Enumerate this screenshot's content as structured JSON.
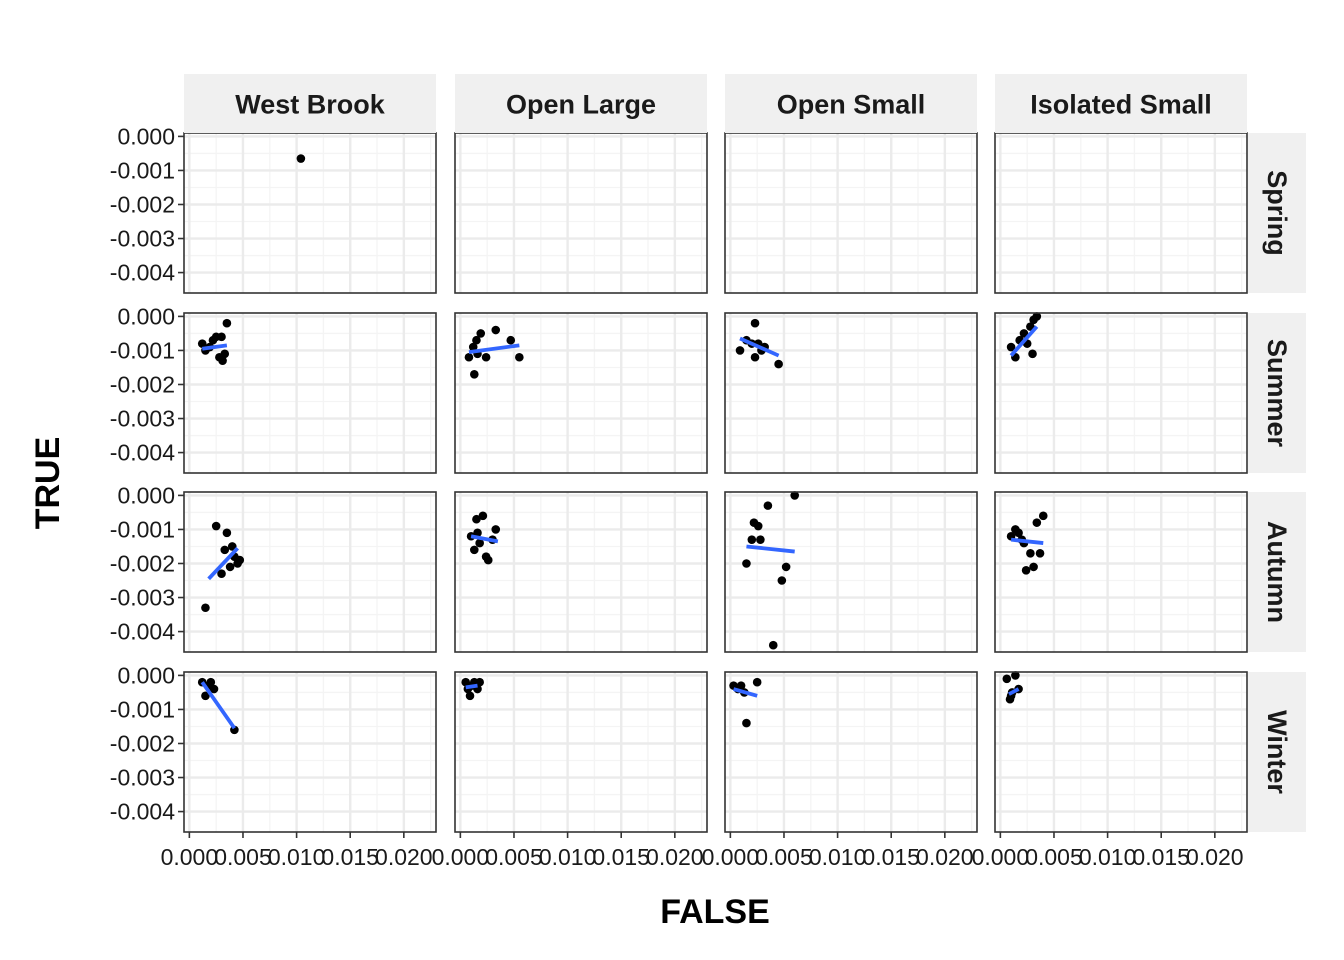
{
  "chart_data": {
    "type": "scatter",
    "xlabel": "FALSE",
    "ylabel": "TRUE",
    "columns": [
      "West Brook",
      "Open Large",
      "Open Small",
      "Isolated Small"
    ],
    "rows": [
      "Spring",
      "Summer",
      "Autumn",
      "Winter"
    ],
    "xlim": [
      -0.0005,
      0.023
    ],
    "ylim": [
      -0.0046,
      0.0001
    ],
    "x_ticks": [
      0,
      0.005,
      0.01,
      0.015,
      0.02
    ],
    "x_tick_labels": [
      "0.000",
      "0.005",
      "0.010",
      "0.015",
      "0.020"
    ],
    "y_ticks": [
      0,
      -0.001,
      -0.002,
      -0.003,
      -0.004
    ],
    "y_tick_labels": [
      "0.000",
      "-0.001",
      "-0.002",
      "-0.003",
      "-0.004"
    ],
    "grid": true,
    "point_color": "#000000",
    "line_color": "#3366FF",
    "strip_fill": "#F0F0F0",
    "panels": [
      {
        "row": "Spring",
        "column": "West Brook",
        "points": [
          [
            0.0104,
            -0.00065
          ]
        ],
        "fit": null
      },
      {
        "row": "Spring",
        "column": "Open Large",
        "points": [],
        "fit": null
      },
      {
        "row": "Spring",
        "column": "Open Small",
        "points": [],
        "fit": null
      },
      {
        "row": "Spring",
        "column": "Isolated Small",
        "points": [],
        "fit": null
      },
      {
        "row": "Summer",
        "column": "West Brook",
        "points": [
          [
            0.0012,
            -0.0008
          ],
          [
            0.0015,
            -0.001
          ],
          [
            0.0019,
            -0.0009
          ],
          [
            0.0022,
            -0.0007
          ],
          [
            0.0025,
            -0.0006
          ],
          [
            0.0028,
            -0.0012
          ],
          [
            0.0031,
            -0.0013
          ],
          [
            0.0033,
            -0.0011
          ],
          [
            0.0035,
            -0.0002
          ],
          [
            0.003,
            -0.0006
          ]
        ],
        "fit": [
          [
            0.0012,
            -0.00095
          ],
          [
            0.0035,
            -0.00085
          ]
        ]
      },
      {
        "row": "Summer",
        "column": "Open Large",
        "points": [
          [
            0.0008,
            -0.0012
          ],
          [
            0.0012,
            -0.0009
          ],
          [
            0.0015,
            -0.0007
          ],
          [
            0.0019,
            -0.0005
          ],
          [
            0.0024,
            -0.0012
          ],
          [
            0.0033,
            -0.0004
          ],
          [
            0.0047,
            -0.0007
          ],
          [
            0.0055,
            -0.0012
          ],
          [
            0.0013,
            -0.0017
          ],
          [
            0.0016,
            -0.0011
          ]
        ],
        "fit": [
          [
            0.0008,
            -0.00105
          ],
          [
            0.0055,
            -0.00085
          ]
        ]
      },
      {
        "row": "Summer",
        "column": "Open Small",
        "points": [
          [
            0.0009,
            -0.001
          ],
          [
            0.0015,
            -0.0007
          ],
          [
            0.002,
            -0.0008
          ],
          [
            0.0023,
            -0.0002
          ],
          [
            0.0026,
            -0.0008
          ],
          [
            0.0029,
            -0.001
          ],
          [
            0.0023,
            -0.0012
          ],
          [
            0.0045,
            -0.0014
          ],
          [
            0.0032,
            -0.0009
          ]
        ],
        "fit": [
          [
            0.0009,
            -0.00065
          ],
          [
            0.0045,
            -0.00115
          ]
        ]
      },
      {
        "row": "Summer",
        "column": "Isolated Small",
        "points": [
          [
            0.001,
            -0.0009
          ],
          [
            0.0014,
            -0.0012
          ],
          [
            0.0018,
            -0.0007
          ],
          [
            0.0022,
            -0.0005
          ],
          [
            0.0025,
            -0.0008
          ],
          [
            0.0028,
            -0.0003
          ],
          [
            0.0031,
            -0.0001
          ],
          [
            0.0034,
            0.0
          ],
          [
            0.003,
            -0.0011
          ]
        ],
        "fit": [
          [
            0.001,
            -0.00115
          ],
          [
            0.0034,
            -0.0003
          ]
        ]
      },
      {
        "row": "Autumn",
        "column": "West Brook",
        "points": [
          [
            0.0015,
            -0.0033
          ],
          [
            0.0025,
            -0.0009
          ],
          [
            0.003,
            -0.0023
          ],
          [
            0.0033,
            -0.0016
          ],
          [
            0.0035,
            -0.0011
          ],
          [
            0.004,
            -0.0015
          ],
          [
            0.0042,
            -0.0018
          ],
          [
            0.0045,
            -0.002
          ],
          [
            0.0047,
            -0.0019
          ],
          [
            0.0038,
            -0.0021
          ]
        ],
        "fit": [
          [
            0.0018,
            -0.00245
          ],
          [
            0.0045,
            -0.00155
          ]
        ]
      },
      {
        "row": "Autumn",
        "column": "Open Large",
        "points": [
          [
            0.001,
            -0.0012
          ],
          [
            0.0013,
            -0.0016
          ],
          [
            0.0015,
            -0.0007
          ],
          [
            0.0018,
            -0.0014
          ],
          [
            0.0021,
            -0.0006
          ],
          [
            0.0024,
            -0.0018
          ],
          [
            0.0026,
            -0.0019
          ],
          [
            0.003,
            -0.0013
          ],
          [
            0.0033,
            -0.001
          ],
          [
            0.0016,
            -0.0011
          ]
        ],
        "fit": [
          [
            0.001,
            -0.0012
          ],
          [
            0.0035,
            -0.00135
          ]
        ]
      },
      {
        "row": "Autumn",
        "column": "Open Small",
        "points": [
          [
            0.0015,
            -0.002
          ],
          [
            0.002,
            -0.0013
          ],
          [
            0.0022,
            -0.0008
          ],
          [
            0.0026,
            -0.0009
          ],
          [
            0.0028,
            -0.0013
          ],
          [
            0.0035,
            -0.0003
          ],
          [
            0.004,
            -0.0044
          ],
          [
            0.0048,
            -0.0025
          ],
          [
            0.0052,
            -0.0021
          ],
          [
            0.006,
            0.0
          ]
        ],
        "fit": [
          [
            0.0015,
            -0.0015
          ],
          [
            0.006,
            -0.00165
          ]
        ]
      },
      {
        "row": "Autumn",
        "column": "Isolated Small",
        "points": [
          [
            0.001,
            -0.0012
          ],
          [
            0.0014,
            -0.001
          ],
          [
            0.0017,
            -0.0011
          ],
          [
            0.002,
            -0.0013
          ],
          [
            0.0024,
            -0.0022
          ],
          [
            0.0028,
            -0.0017
          ],
          [
            0.0031,
            -0.0021
          ],
          [
            0.0034,
            -0.0008
          ],
          [
            0.0037,
            -0.0017
          ],
          [
            0.004,
            -0.0006
          ],
          [
            0.0022,
            -0.0014
          ]
        ],
        "fit": [
          [
            0.001,
            -0.0013
          ],
          [
            0.004,
            -0.0014
          ]
        ]
      },
      {
        "row": "Winter",
        "column": "West Brook",
        "points": [
          [
            0.0012,
            -0.0002
          ],
          [
            0.0015,
            -0.0006
          ],
          [
            0.0018,
            -0.0003
          ],
          [
            0.002,
            -0.0002
          ],
          [
            0.0023,
            -0.0004
          ],
          [
            0.0042,
            -0.0016
          ]
        ],
        "fit": [
          [
            0.0012,
            -0.0002
          ],
          [
            0.0042,
            -0.00155
          ]
        ]
      },
      {
        "row": "Winter",
        "column": "Open Large",
        "points": [
          [
            0.0005,
            -0.0002
          ],
          [
            0.0007,
            -0.0004
          ],
          [
            0.0009,
            -0.0006
          ],
          [
            0.0011,
            -0.0003
          ],
          [
            0.0013,
            -0.0002
          ],
          [
            0.0016,
            -0.0004
          ],
          [
            0.0018,
            -0.0002
          ]
        ],
        "fit": [
          [
            0.0005,
            -0.00035
          ],
          [
            0.0016,
            -0.0003
          ]
        ]
      },
      {
        "row": "Winter",
        "column": "Open Small",
        "points": [
          [
            0.0003,
            -0.0003
          ],
          [
            0.0007,
            -0.0004
          ],
          [
            0.001,
            -0.0003
          ],
          [
            0.0013,
            -0.0005
          ],
          [
            0.0015,
            -0.0014
          ],
          [
            0.0025,
            -0.0002
          ]
        ],
        "fit": [
          [
            0.0003,
            -0.0004
          ],
          [
            0.0025,
            -0.0006
          ]
        ]
      },
      {
        "row": "Winter",
        "column": "Isolated Small",
        "points": [
          [
            0.0006,
            -0.0001
          ],
          [
            0.0009,
            -0.0007
          ],
          [
            0.0011,
            -0.0005
          ],
          [
            0.0014,
            0.0
          ],
          [
            0.0017,
            -0.0004
          ],
          [
            0.001,
            -0.0006
          ]
        ],
        "fit": [
          [
            0.0008,
            -0.00055
          ],
          [
            0.0017,
            -0.0004
          ]
        ]
      }
    ]
  }
}
